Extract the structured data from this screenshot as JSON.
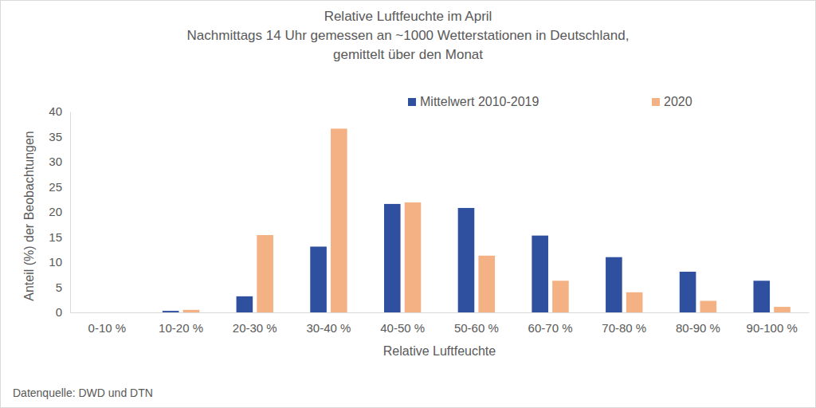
{
  "chart_data": {
    "type": "bar",
    "title": [
      "Relative Luftfeuchte im April",
      "Nachmittags 14 Uhr gemessen an ~1000 Wetterstationen in Deutschland,",
      "gemittelt über den Monat"
    ],
    "x_label": "Relative Luftfeuchte",
    "y_label": "Anteil (%) der Beobachtungen",
    "source": "Datenquelle: DWD und DTN",
    "categories": [
      "0-10 %",
      "10-20 %",
      "20-30 %",
      "30-40 %",
      "40-50 %",
      "50-60 %",
      "60-70 %",
      "70-80 %",
      "80-90 %",
      "90-100 %"
    ],
    "series": [
      {
        "name": "Mittelwert 2010-2019",
        "color": "#2f4f9f",
        "values": [
          0,
          0.3,
          3.2,
          13.1,
          21.6,
          20.8,
          15.3,
          11.0,
          8.1,
          6.3
        ]
      },
      {
        "name": "2020",
        "color": "#f4b183",
        "values": [
          0,
          0.5,
          15.4,
          36.6,
          21.9,
          11.3,
          6.3,
          4.0,
          2.3,
          1.1
        ]
      }
    ],
    "ylim": [
      0,
      40
    ],
    "yticks": [
      0,
      5,
      10,
      15,
      20,
      25,
      30,
      35,
      40
    ],
    "grid": false,
    "legend": "top"
  }
}
